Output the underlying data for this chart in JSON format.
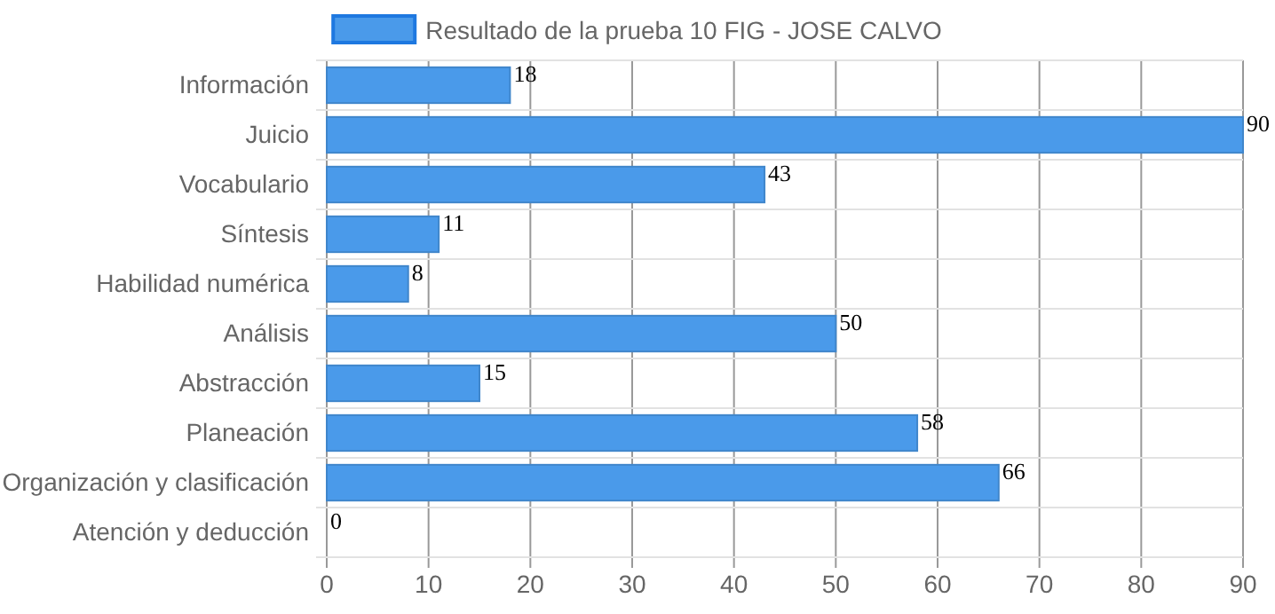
{
  "chart_data": {
    "type": "bar",
    "orientation": "horizontal",
    "categories": [
      "Información",
      "Juicio",
      "Vocabulario",
      "Síntesis",
      "Habilidad numérica",
      "Análisis",
      "Abstracción",
      "Planeación",
      "Organización y clasificación",
      "Atención y deducción"
    ],
    "series": [
      {
        "name": "Resultado de la prueba 10 FIG - JOSE CALVO",
        "color": "#4a9aea",
        "values": [
          18,
          90,
          43,
          11,
          8,
          50,
          15,
          58,
          66,
          0
        ]
      }
    ],
    "xlim": [
      0,
      90
    ],
    "xticks": [
      0,
      10,
      20,
      30,
      40,
      50,
      60,
      70,
      80,
      90
    ],
    "grid": true,
    "legend": "top",
    "data_labels": true
  }
}
